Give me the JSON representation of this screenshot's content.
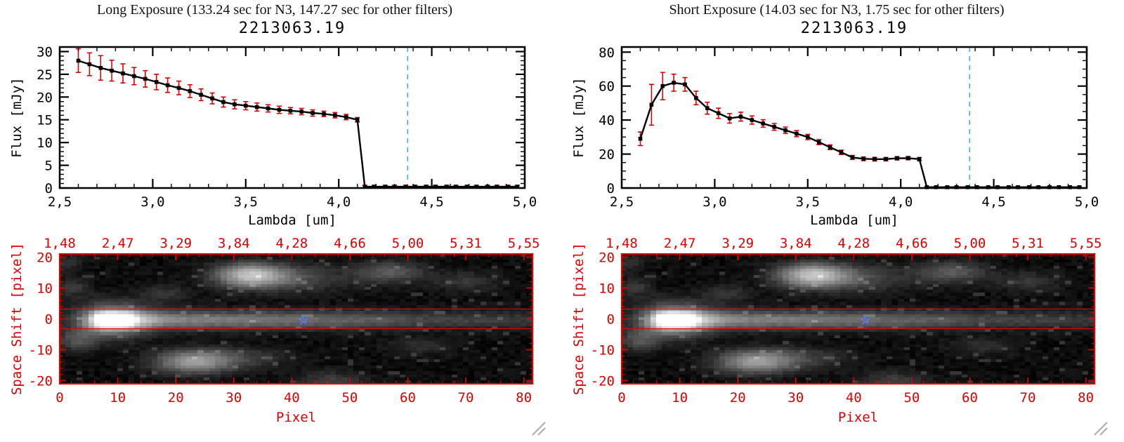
{
  "chart_data": [
    {
      "id": "spectrum-long",
      "type": "line",
      "panel_title": "Long Exposure (133.24 sec for N3, 147.27 sec for other filters)",
      "title": "2213063.19",
      "xlabel": "Lambda [um]",
      "ylabel": "Flux [mJy]",
      "xlim": [
        2.5,
        5.0
      ],
      "ylim": [
        0,
        31
      ],
      "xtick_values": [
        2.5,
        3.0,
        3.5,
        4.0,
        4.5,
        5.0
      ],
      "xtick_labels": [
        "2,5",
        "3,0",
        "3,5",
        "4,0",
        "4,5",
        "5,0"
      ],
      "ytick_values": [
        0,
        5,
        10,
        15,
        20,
        25,
        30
      ],
      "ytick_labels": [
        "0",
        "5",
        "10",
        "15",
        "20",
        "25",
        "30"
      ],
      "x_minor_step": 0.1,
      "y_minor_step": 1,
      "marker": "square",
      "line_color": "#000000",
      "error_color": "#dd0000",
      "vline": {
        "x": 4.37,
        "color": "#55a0f0",
        "style": "dashed"
      },
      "x": [
        2.6,
        2.66,
        2.72,
        2.78,
        2.84,
        2.9,
        2.96,
        3.02,
        3.08,
        3.14,
        3.2,
        3.26,
        3.32,
        3.38,
        3.44,
        3.5,
        3.56,
        3.62,
        3.68,
        3.74,
        3.8,
        3.86,
        3.92,
        3.98,
        4.04,
        4.1,
        4.14,
        4.19,
        4.25,
        4.3,
        4.36,
        4.41,
        4.47,
        4.52,
        4.58,
        4.63,
        4.69,
        4.74,
        4.8,
        4.85,
        4.91,
        4.96
      ],
      "y": [
        28.0,
        27.2,
        26.4,
        25.8,
        25.2,
        24.6,
        24.0,
        23.3,
        22.6,
        22.0,
        21.3,
        20.5,
        19.7,
        18.9,
        18.4,
        18.1,
        17.8,
        17.5,
        17.2,
        17.0,
        16.8,
        16.5,
        16.3,
        16.0,
        15.6,
        15.0,
        0.3,
        0.3,
        0.3,
        0.3,
        0.3,
        0.3,
        0.3,
        0.3,
        0.3,
        0.3,
        0.3,
        0.3,
        0.3,
        0.3,
        0.3,
        0.3
      ],
      "yerr": [
        2.6,
        2.5,
        2.7,
        2.3,
        2.1,
        1.9,
        1.8,
        1.7,
        1.6,
        1.5,
        1.4,
        1.3,
        1.2,
        1.1,
        1.0,
        0.9,
        0.9,
        0.8,
        0.8,
        0.7,
        0.7,
        0.7,
        0.6,
        0.6,
        0.6,
        0.5,
        0.3,
        0.3,
        0.3,
        0.3,
        0.3,
        0.3,
        0.3,
        0.3,
        0.3,
        0.3,
        0.3,
        0.3,
        0.3,
        0.3,
        0.3,
        0.3
      ]
    },
    {
      "id": "spectrum-short",
      "type": "line",
      "panel_title": "Short Exposure (14.03 sec for N3, 1.75 sec for other filters)",
      "title": "2213063.19",
      "xlabel": "Lambda [um]",
      "ylabel": "Flux [mJy]",
      "xlim": [
        2.5,
        5.0
      ],
      "ylim": [
        0,
        83
      ],
      "xtick_values": [
        2.5,
        3.0,
        3.5,
        4.0,
        4.5,
        5.0
      ],
      "xtick_labels": [
        "2,5",
        "3,0",
        "3,5",
        "4,0",
        "4,5",
        "5,0"
      ],
      "ytick_values": [
        0,
        20,
        40,
        60,
        80
      ],
      "ytick_labels": [
        "0",
        "20",
        "40",
        "60",
        "80"
      ],
      "x_minor_step": 0.1,
      "y_minor_step": 5,
      "marker": "square",
      "line_color": "#000000",
      "error_color": "#dd0000",
      "vline": {
        "x": 4.37,
        "color": "#55a0f0",
        "style": "dashed"
      },
      "x": [
        2.6,
        2.66,
        2.72,
        2.78,
        2.84,
        2.9,
        2.96,
        3.02,
        3.08,
        3.14,
        3.2,
        3.26,
        3.32,
        3.38,
        3.44,
        3.5,
        3.56,
        3.62,
        3.68,
        3.74,
        3.8,
        3.86,
        3.92,
        3.98,
        4.04,
        4.1,
        4.14,
        4.19,
        4.25,
        4.3,
        4.36,
        4.41,
        4.47,
        4.52,
        4.58,
        4.63,
        4.69,
        4.74,
        4.8,
        4.85,
        4.91,
        4.96
      ],
      "y": [
        29,
        49,
        60,
        62,
        61,
        53,
        47,
        44,
        41,
        42,
        40,
        38,
        36,
        34,
        32,
        30,
        27,
        24,
        21,
        18,
        17.2,
        17.0,
        17.0,
        17.5,
        17.6,
        17.0,
        0.5,
        0.5,
        0.5,
        0.5,
        0.5,
        0.5,
        0.5,
        0.5,
        0.5,
        0.5,
        0.5,
        0.5,
        0.5,
        0.5,
        0.5,
        0.5
      ],
      "yerr": [
        4,
        12,
        8,
        5,
        4,
        4,
        3.5,
        3,
        2.8,
        2.6,
        2.4,
        2.2,
        2.0,
        1.9,
        1.8,
        1.6,
        1.5,
        1.4,
        1.3,
        1.2,
        1.1,
        1.1,
        1.0,
        1.0,
        1.0,
        1.0,
        0.4,
        0.4,
        0.4,
        0.4,
        0.4,
        0.4,
        0.4,
        0.4,
        0.4,
        0.4,
        0.4,
        0.4,
        0.4,
        0.4,
        0.4,
        0.4
      ]
    },
    {
      "id": "image-long",
      "type": "heatmap",
      "xlabel": "Pixel",
      "ylabel": "Space Shift [pixel]",
      "xlim": [
        0,
        81.5
      ],
      "ylim": [
        -21,
        21
      ],
      "xticks": [
        0,
        10,
        20,
        30,
        40,
        50,
        60,
        70,
        80
      ],
      "yticks": [
        -20,
        -10,
        0,
        10,
        20
      ],
      "top_axis_labels": [
        "1,48",
        "2,47",
        "3,29",
        "3,84",
        "4,28",
        "4,66",
        "5,00",
        "5,31",
        "5,55"
      ],
      "axis_color": "#dd0000",
      "aperture_lines_y": [
        3.2,
        -3.2
      ],
      "star_marker": {
        "x": 42,
        "y": -0.5,
        "color": "#5577ff"
      },
      "noise": 0.06,
      "features": [
        {
          "type": "trace",
          "y": -0.5,
          "sigma_y": 2.1,
          "profile": [
            [
              0,
              0.02
            ],
            [
              3,
              0.06
            ],
            [
              5,
              0.35
            ],
            [
              7,
              0.95
            ],
            [
              9,
              1.05
            ],
            [
              12,
              0.95
            ],
            [
              14,
              0.6
            ],
            [
              17,
              0.47
            ],
            [
              22,
              0.42
            ],
            [
              30,
              0.4
            ],
            [
              38,
              0.36
            ],
            [
              46,
              0.32
            ],
            [
              54,
              0.26
            ],
            [
              62,
              0.2
            ],
            [
              70,
              0.17
            ],
            [
              81,
              0.14
            ]
          ]
        },
        {
          "type": "blob",
          "x": 9,
          "y": -0.5,
          "sx": 4.5,
          "sy": 4,
          "amp": 0.38
        },
        {
          "type": "blob",
          "x": 33,
          "y": 14,
          "sx": 4.2,
          "sy": 2.6,
          "amp": 0.62
        },
        {
          "type": "blob",
          "x": 40,
          "y": 13,
          "sx": 7,
          "sy": 3,
          "amp": 0.2
        },
        {
          "type": "blob",
          "x": 57,
          "y": 15,
          "sx": 4,
          "sy": 2.4,
          "amp": 0.26
        },
        {
          "type": "blob",
          "x": 70,
          "y": 12,
          "sx": 4,
          "sy": 2.2,
          "amp": 0.13
        },
        {
          "type": "blob",
          "x": 23,
          "y": -14,
          "sx": 4.5,
          "sy": 2.6,
          "amp": 0.5
        },
        {
          "type": "blob",
          "x": 31,
          "y": -13,
          "sx": 6,
          "sy": 2.5,
          "amp": 0.15
        },
        {
          "type": "blob",
          "x": 3,
          "y": -7,
          "sx": 2.5,
          "sy": 2.5,
          "amp": 0.22
        },
        {
          "type": "blob",
          "x": 2,
          "y": 10,
          "sx": 2,
          "sy": 2,
          "amp": 0.15
        },
        {
          "type": "blob",
          "x": 1,
          "y": 18,
          "sx": 2,
          "sy": 2,
          "amp": 0.12
        },
        {
          "type": "blob",
          "x": 47,
          "y": -20,
          "sx": 4,
          "sy": 2,
          "amp": 0.16
        },
        {
          "type": "blob",
          "x": 62,
          "y": -9,
          "sx": 4,
          "sy": 2,
          "amp": 0.1
        },
        {
          "type": "blob",
          "x": 18,
          "y": 8,
          "sx": 3,
          "sy": 2,
          "amp": 0.12
        }
      ]
    },
    {
      "id": "image-short",
      "type": "heatmap",
      "xlabel": "Pixel",
      "ylabel": "Space Shift [pixel]",
      "xlim": [
        0,
        81.5
      ],
      "ylim": [
        -21,
        21
      ],
      "xticks": [
        0,
        10,
        20,
        30,
        40,
        50,
        60,
        70,
        80
      ],
      "yticks": [
        -20,
        -10,
        0,
        10,
        20
      ],
      "top_axis_labels": [
        "1,48",
        "2,47",
        "3,29",
        "3,84",
        "4,28",
        "4,66",
        "5,00",
        "5,31",
        "5,55"
      ],
      "axis_color": "#dd0000",
      "aperture_lines_y": [
        3.2,
        -3.2
      ],
      "star_marker": {
        "x": 42,
        "y": -0.5,
        "color": "#5577ff"
      },
      "noise": 0.06,
      "features": [
        {
          "type": "trace",
          "y": -0.5,
          "sigma_y": 2.1,
          "profile": [
            [
              0,
              0.02
            ],
            [
              3,
              0.06
            ],
            [
              5,
              0.35
            ],
            [
              7,
              0.95
            ],
            [
              9,
              1.05
            ],
            [
              12,
              0.95
            ],
            [
              14,
              0.6
            ],
            [
              17,
              0.47
            ],
            [
              22,
              0.42
            ],
            [
              30,
              0.4
            ],
            [
              38,
              0.36
            ],
            [
              46,
              0.32
            ],
            [
              54,
              0.26
            ],
            [
              62,
              0.2
            ],
            [
              70,
              0.17
            ],
            [
              81,
              0.14
            ]
          ]
        },
        {
          "type": "blob",
          "x": 9,
          "y": -0.5,
          "sx": 4.5,
          "sy": 4,
          "amp": 0.38
        },
        {
          "type": "blob",
          "x": 33,
          "y": 14,
          "sx": 4.2,
          "sy": 2.6,
          "amp": 0.62
        },
        {
          "type": "blob",
          "x": 40,
          "y": 13,
          "sx": 7,
          "sy": 3,
          "amp": 0.2
        },
        {
          "type": "blob",
          "x": 57,
          "y": 15,
          "sx": 4,
          "sy": 2.4,
          "amp": 0.26
        },
        {
          "type": "blob",
          "x": 70,
          "y": 12,
          "sx": 4,
          "sy": 2.2,
          "amp": 0.13
        },
        {
          "type": "blob",
          "x": 23,
          "y": -14,
          "sx": 4.5,
          "sy": 2.6,
          "amp": 0.5
        },
        {
          "type": "blob",
          "x": 31,
          "y": -13,
          "sx": 6,
          "sy": 2.5,
          "amp": 0.15
        },
        {
          "type": "blob",
          "x": 3,
          "y": -7,
          "sx": 2.5,
          "sy": 2.5,
          "amp": 0.22
        },
        {
          "type": "blob",
          "x": 2,
          "y": 10,
          "sx": 2,
          "sy": 2,
          "amp": 0.15
        },
        {
          "type": "blob",
          "x": 1,
          "y": 18,
          "sx": 2,
          "sy": 2,
          "amp": 0.12
        },
        {
          "type": "blob",
          "x": 47,
          "y": -20,
          "sx": 4,
          "sy": 2,
          "amp": 0.16
        },
        {
          "type": "blob",
          "x": 62,
          "y": -9,
          "sx": 4,
          "sy": 2,
          "amp": 0.1
        },
        {
          "type": "blob",
          "x": 18,
          "y": 8,
          "sx": 3,
          "sy": 2,
          "amp": 0.12
        }
      ]
    }
  ]
}
